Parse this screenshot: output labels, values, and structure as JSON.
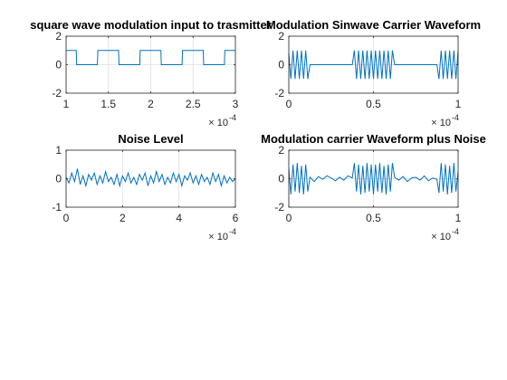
{
  "colors": {
    "line": "#0072bd",
    "axis": "#262626",
    "grid": "#dfdfdf",
    "background": "#ffffff"
  },
  "chart_data": [
    {
      "type": "line",
      "title": "square wave modulation input to trasmitter",
      "xlabel": "",
      "ylabel": "",
      "xlim": [
        1,
        3
      ],
      "ylim": [
        -2,
        2
      ],
      "xticks": [
        "1",
        "1.5",
        "2",
        "2.5",
        "3"
      ],
      "yticks": [
        "-2",
        "0",
        "2"
      ],
      "x_exponent_base": "× 10",
      "x_exponent": "-4",
      "grid": true,
      "series": [
        {
          "x": [
            1.0,
            1.12,
            1.125,
            1.37,
            1.375,
            1.62,
            1.625,
            1.87,
            1.875,
            2.12,
            2.125,
            2.37,
            2.375,
            2.62,
            2.625,
            2.87,
            2.875,
            3.0
          ],
          "y": [
            1.0,
            1.0,
            0.0,
            0.0,
            1.0,
            1.0,
            0.0,
            0.0,
            1.0,
            1.0,
            0.0,
            0.0,
            1.0,
            1.0,
            0.0,
            0.0,
            1.0,
            1.0
          ]
        }
      ]
    },
    {
      "type": "line",
      "title": "Modulation Sinwave Carrier Waveform",
      "xlabel": "",
      "ylabel": "",
      "xlim": [
        0,
        1
      ],
      "ylim": [
        -2,
        2
      ],
      "xticks": [
        "0",
        "0.5",
        "1"
      ],
      "yticks": [
        "-2",
        "0",
        "2"
      ],
      "x_exponent_base": "× 10",
      "x_exponent": "-4",
      "grid": true,
      "series": [
        {
          "x": [
            0.0,
            0.012,
            0.025,
            0.037,
            0.05,
            0.062,
            0.075,
            0.087,
            0.1,
            0.112,
            0.125,
            0.375,
            0.387,
            0.4,
            0.412,
            0.425,
            0.437,
            0.45,
            0.462,
            0.475,
            0.487,
            0.5,
            0.512,
            0.525,
            0.537,
            0.55,
            0.562,
            0.575,
            0.587,
            0.6,
            0.612,
            0.625,
            0.875,
            0.887,
            0.9,
            0.912,
            0.925,
            0.937,
            0.95,
            0.962,
            0.975,
            0.987,
            1.0
          ],
          "y": [
            0.8,
            -1.0,
            1.0,
            -1.0,
            1.0,
            -1.0,
            1.0,
            -1.0,
            1.0,
            -1.0,
            0.0,
            0.0,
            1.0,
            -1.0,
            1.0,
            -1.0,
            1.0,
            -1.0,
            1.0,
            -1.0,
            1.0,
            -1.0,
            1.0,
            -1.0,
            1.0,
            -1.0,
            1.0,
            -1.0,
            1.0,
            -1.0,
            1.0,
            0.0,
            0.0,
            -1.0,
            1.0,
            -1.0,
            1.0,
            -1.0,
            1.0,
            -1.0,
            1.0,
            -1.0,
            1.0
          ]
        }
      ]
    },
    {
      "type": "line",
      "title": "Noise Level",
      "xlabel": "",
      "ylabel": "",
      "xlim": [
        0,
        6
      ],
      "ylim": [
        -1,
        1
      ],
      "xticks": [
        "0",
        "2",
        "4",
        "6"
      ],
      "yticks": [
        "-1",
        "0",
        "1"
      ],
      "x_exponent_base": "× 10",
      "x_exponent": "-4",
      "grid": true,
      "series": [
        {
          "x": [
            0.0,
            0.1,
            0.2,
            0.3,
            0.4,
            0.5,
            0.6,
            0.7,
            0.8,
            0.9,
            1.0,
            1.1,
            1.2,
            1.3,
            1.4,
            1.5,
            1.6,
            1.7,
            1.8,
            1.9,
            2.0,
            2.1,
            2.2,
            2.3,
            2.4,
            2.5,
            2.6,
            2.7,
            2.8,
            2.9,
            3.0,
            3.1,
            3.2,
            3.3,
            3.4,
            3.5,
            3.6,
            3.7,
            3.8,
            3.9,
            4.0,
            4.1,
            4.2,
            4.3,
            4.4,
            4.5,
            4.6,
            4.7,
            4.8,
            4.9,
            5.0,
            5.1,
            5.2,
            5.3,
            5.4,
            5.5,
            5.6,
            5.7,
            5.8,
            5.9,
            6.0
          ],
          "y": [
            0.05,
            -0.15,
            0.2,
            -0.1,
            0.35,
            -0.2,
            0.1,
            -0.25,
            0.15,
            -0.05,
            0.2,
            -0.2,
            0.1,
            -0.15,
            0.25,
            -0.1,
            0.05,
            -0.2,
            0.15,
            -0.25,
            0.1,
            -0.1,
            0.2,
            -0.15,
            0.05,
            -0.2,
            0.15,
            -0.05,
            0.2,
            -0.25,
            0.1,
            -0.15,
            0.25,
            -0.1,
            0.15,
            -0.2,
            0.05,
            -0.15,
            0.2,
            -0.1,
            0.15,
            -0.25,
            0.1,
            -0.05,
            0.2,
            -0.15,
            0.1,
            -0.2,
            0.15,
            -0.1,
            0.05,
            -0.2,
            0.2,
            -0.1,
            0.15,
            -0.25,
            0.1,
            -0.15,
            0.05,
            -0.1,
            0.0
          ]
        }
      ]
    },
    {
      "type": "line",
      "title": "Modulation carrier Waveform plus Noise",
      "xlabel": "",
      "ylabel": "",
      "xlim": [
        0,
        1
      ],
      "ylim": [
        -2,
        2
      ],
      "xticks": [
        "0",
        "0.5",
        "1"
      ],
      "yticks": [
        "-2",
        "0",
        "2"
      ],
      "x_exponent_base": "× 10",
      "x_exponent": "-4",
      "grid": true,
      "series": [
        {
          "x": [
            0.0,
            0.012,
            0.025,
            0.037,
            0.05,
            0.062,
            0.075,
            0.087,
            0.1,
            0.112,
            0.125,
            0.15,
            0.175,
            0.2,
            0.225,
            0.25,
            0.275,
            0.3,
            0.325,
            0.35,
            0.375,
            0.387,
            0.4,
            0.412,
            0.425,
            0.437,
            0.45,
            0.462,
            0.475,
            0.487,
            0.5,
            0.512,
            0.525,
            0.537,
            0.55,
            0.562,
            0.575,
            0.587,
            0.6,
            0.612,
            0.625,
            0.65,
            0.675,
            0.7,
            0.725,
            0.75,
            0.775,
            0.8,
            0.825,
            0.85,
            0.875,
            0.887,
            0.9,
            0.912,
            0.925,
            0.937,
            0.95,
            0.962,
            0.975,
            0.987,
            1.0
          ],
          "y": [
            0.7,
            -1.1,
            1.0,
            -0.9,
            1.1,
            -1.0,
            0.9,
            -1.1,
            1.0,
            -0.9,
            0.1,
            -0.2,
            0.15,
            -0.05,
            0.2,
            0.05,
            -0.15,
            0.1,
            -0.1,
            0.2,
            0.05,
            1.1,
            -0.9,
            1.0,
            -1.1,
            0.9,
            -1.0,
            1.1,
            -0.9,
            1.0,
            -1.1,
            1.0,
            -0.9,
            1.1,
            -1.0,
            0.9,
            -1.1,
            1.0,
            -0.9,
            1.1,
            0.1,
            -0.1,
            0.15,
            -0.2,
            0.05,
            0.1,
            -0.1,
            0.2,
            -0.15,
            0.05,
            -0.05,
            -1.0,
            1.1,
            -0.9,
            1.0,
            -1.1,
            0.9,
            -1.0,
            1.1,
            -0.9,
            0.5
          ]
        }
      ]
    }
  ]
}
